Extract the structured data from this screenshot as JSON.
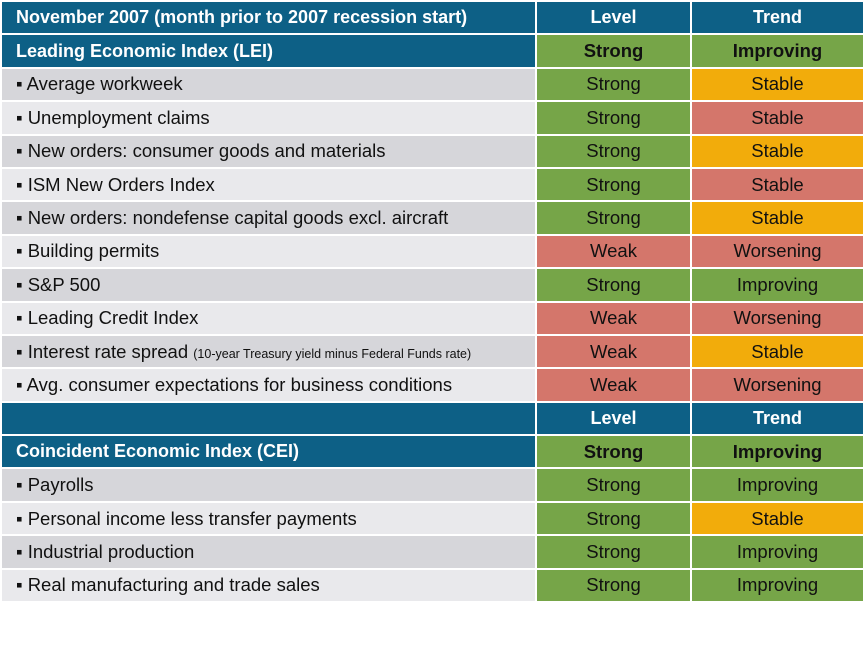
{
  "title_row": {
    "label": "November 2007 (month prior to 2007 recession start)",
    "level": "Level",
    "trend": "Trend"
  },
  "lei": {
    "label": "Leading Economic Index (LEI)",
    "level": "Strong",
    "trend": "Improving",
    "rows": [
      {
        "label": "▪ Average workweek",
        "note": "",
        "level": "Strong",
        "trend": "Stable",
        "level_color": "green",
        "trend_color": "amber"
      },
      {
        "label": "▪ Unemployment claims",
        "note": "",
        "level": "Strong",
        "trend": "Stable",
        "level_color": "green",
        "trend_color": "salmon"
      },
      {
        "label": "▪ New orders: consumer goods and materials",
        "note": "",
        "level": "Strong",
        "trend": "Stable",
        "level_color": "green",
        "trend_color": "amber"
      },
      {
        "label": "▪ ISM New Orders Index",
        "note": "",
        "level": "Strong",
        "trend": "Stable",
        "level_color": "green",
        "trend_color": "salmon"
      },
      {
        "label": "▪ New orders: nondefense capital goods excl. aircraft",
        "note": "",
        "level": "Strong",
        "trend": "Stable",
        "level_color": "green",
        "trend_color": "amber"
      },
      {
        "label": "▪ Building permits",
        "note": "",
        "level": "Weak",
        "trend": "Worsening",
        "level_color": "salmon",
        "trend_color": "salmon"
      },
      {
        "label": "▪ S&P 500",
        "note": "",
        "level": "Strong",
        "trend": "Improving",
        "level_color": "green",
        "trend_color": "green"
      },
      {
        "label": "▪ Leading Credit Index",
        "note": "",
        "level": "Weak",
        "trend": "Worsening",
        "level_color": "salmon",
        "trend_color": "salmon"
      },
      {
        "label": "▪ Interest rate spread",
        "note": "(10-year Treasury yield minus Federal Funds rate)",
        "level": "Weak",
        "trend": "Stable",
        "level_color": "salmon",
        "trend_color": "amber"
      },
      {
        "label": "▪ Avg. consumer expectations for business conditions",
        "note": "",
        "level": "Weak",
        "trend": "Worsening",
        "level_color": "salmon",
        "trend_color": "salmon"
      }
    ]
  },
  "cei_header": {
    "level": "Level",
    "trend": "Trend"
  },
  "cei": {
    "label": "Coincident Economic Index (CEI)",
    "level": "Strong",
    "trend": "Improving",
    "rows": [
      {
        "label": "▪ Payrolls",
        "note": "",
        "level": "Strong",
        "trend": "Improving",
        "level_color": "green",
        "trend_color": "green"
      },
      {
        "label": "▪ Personal income less transfer payments",
        "note": "",
        "level": "Strong",
        "trend": "Stable",
        "level_color": "green",
        "trend_color": "amber"
      },
      {
        "label": "▪ Industrial production",
        "note": "",
        "level": "Strong",
        "trend": "Improving",
        "level_color": "green",
        "trend_color": "green"
      },
      {
        "label": "▪ Real manufacturing and trade sales",
        "note": "",
        "level": "Strong",
        "trend": "Improving",
        "level_color": "green",
        "trend_color": "green"
      }
    ]
  },
  "colors": {
    "navy": "#0d6086",
    "green": "#76a548",
    "salmon": "#d4766b",
    "amber": "#f2ac0b",
    "gray_dark": "#d6d6da",
    "gray_light": "#e9e9ec"
  }
}
